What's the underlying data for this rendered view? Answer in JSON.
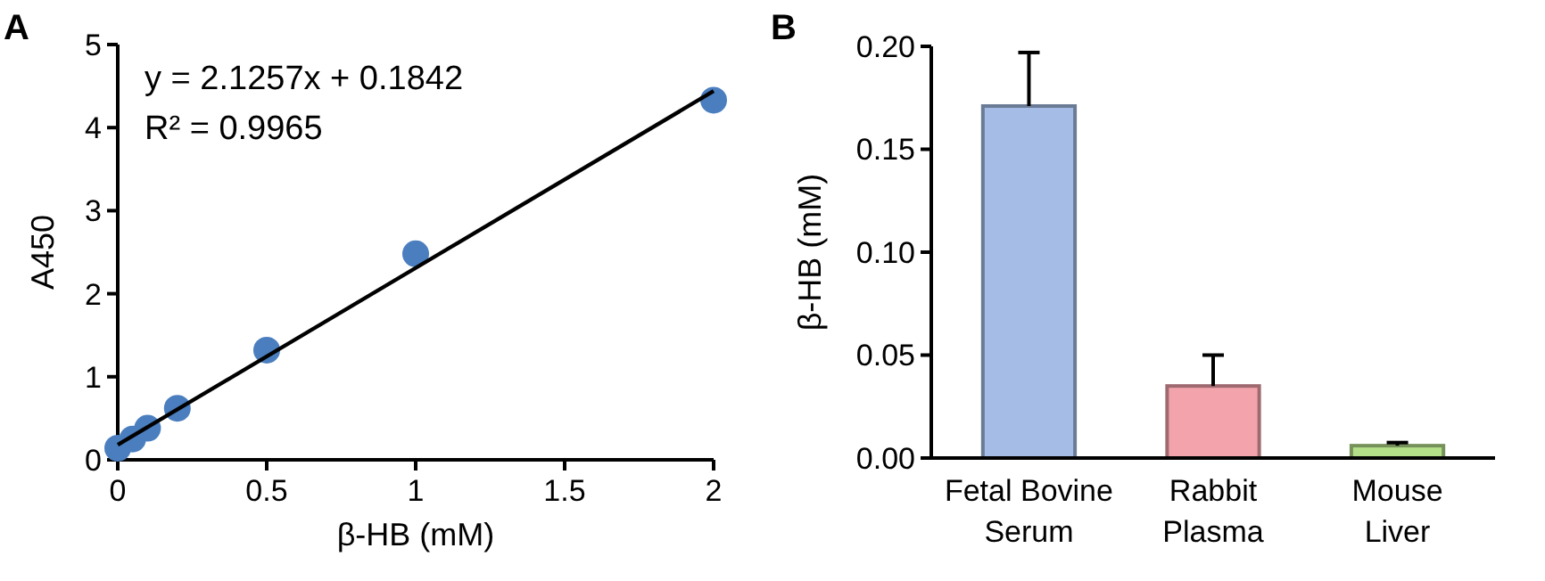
{
  "chart_data": [
    {
      "type": "scatter",
      "title": "A",
      "xlabel": "β-HB (mM)",
      "ylabel": "A450",
      "annotations": [
        "y = 2.1257x + 0.1842",
        "R² = 0.9965"
      ],
      "xlim": [
        0,
        2
      ],
      "ylim": [
        0,
        5
      ],
      "xticks": [
        0,
        0.5,
        1,
        1.5,
        2
      ],
      "yticks": [
        0,
        1,
        2,
        3,
        4,
        5
      ],
      "series": [
        {
          "type": "scatter",
          "marker": "circle",
          "color": "#4a7ebf",
          "x": [
            0,
            0.05,
            0.1,
            0.2,
            0.5,
            1,
            2
          ],
          "values": [
            0.14,
            0.25,
            0.38,
            0.62,
            1.32,
            2.48,
            4.33
          ]
        },
        {
          "type": "line",
          "color": "#000000",
          "x": [
            0,
            2
          ],
          "values": [
            0.18,
            4.44
          ]
        }
      ]
    },
    {
      "type": "bar",
      "title": "B",
      "ylabel": "β-HB (mM)",
      "categories": [
        "Fetal Bovine Serum",
        "Rabbit Plasma",
        "Mouse Liver"
      ],
      "values": [
        0.171,
        0.035,
        0.006
      ],
      "colors": [
        "#a4bce6",
        "#f2a3ac",
        "#b5e08a"
      ],
      "errors": [
        [
          0.171,
          0.197
        ],
        [
          0.035,
          0.05
        ],
        [
          0.006,
          0.0075
        ]
      ],
      "ylim": [
        0,
        0.2
      ],
      "yticks": [
        {
          "value": 0,
          "label": "0.00"
        },
        {
          "value": 0.05,
          "label": "0.05"
        },
        {
          "value": 0.1,
          "label": "0.10"
        },
        {
          "value": 0.15,
          "label": "0.15"
        },
        {
          "value": 0.2,
          "label": "0.20"
        }
      ]
    }
  ]
}
